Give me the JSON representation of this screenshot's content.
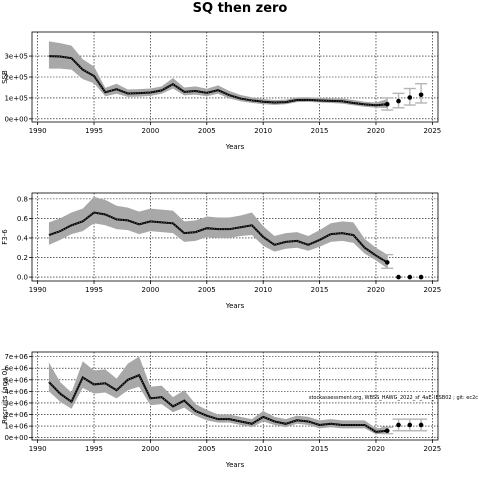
{
  "page": {
    "title": "SQ then zero"
  },
  "chart_data": [
    {
      "type": "line",
      "xlabel": "Years",
      "ylabel": "SSB",
      "xlim": [
        1989.5,
        2025.5
      ],
      "ylim": [
        -15000,
        415000
      ],
      "xticks": [
        1990,
        1995,
        2000,
        2005,
        2010,
        2015,
        2020,
        2025
      ],
      "yticks": [
        0,
        100000,
        200000,
        300000
      ],
      "yticklabels": [
        "0e+00",
        "1e+05",
        "2e+05",
        "3e+05"
      ],
      "grid": true,
      "years": [
        1991,
        1992,
        1993,
        1994,
        1995,
        1996,
        1997,
        1998,
        1999,
        2000,
        2001,
        2002,
        2003,
        2004,
        2005,
        2006,
        2007,
        2008,
        2009,
        2010,
        2011,
        2012,
        2013,
        2014,
        2015,
        2016,
        2017,
        2018,
        2019,
        2020,
        2021
      ],
      "estimate": [
        300000,
        298000,
        290000,
        235000,
        205000,
        127000,
        142000,
        121000,
        123000,
        126000,
        136000,
        166000,
        129000,
        133000,
        124000,
        137000,
        113000,
        97000,
        88000,
        82000,
        78000,
        80000,
        90000,
        91000,
        88000,
        86000,
        84000,
        76000,
        69000,
        65000,
        70000
      ],
      "lower": [
        240000,
        240000,
        235000,
        190000,
        170000,
        108000,
        120000,
        105000,
        106000,
        110000,
        120000,
        145000,
        112000,
        116000,
        108000,
        120000,
        97000,
        84000,
        76000,
        70000,
        67000,
        70000,
        80000,
        81000,
        78000,
        76000,
        73000,
        65000,
        58000,
        53000,
        52000
      ],
      "upper": [
        370000,
        362000,
        350000,
        285000,
        250000,
        148000,
        168000,
        140000,
        142000,
        145000,
        155000,
        195000,
        150000,
        155000,
        144000,
        160000,
        133000,
        114000,
        103000,
        95000,
        90000,
        92000,
        103000,
        103000,
        100000,
        98000,
        97000,
        90000,
        82000,
        78000,
        95000
      ],
      "projection": {
        "years": [
          2021,
          2022,
          2023,
          2024
        ],
        "values": [
          70000,
          85000,
          102000,
          115000
        ],
        "lower": [
          42000,
          53000,
          66000,
          76000
        ],
        "upper": [
          100000,
          122000,
          145000,
          168000
        ]
      },
      "annotation": ""
    },
    {
      "type": "line",
      "xlabel": "Years",
      "ylabel": "F3-6",
      "xlim": [
        1989.5,
        2025.5
      ],
      "ylim": [
        -0.04,
        0.86
      ],
      "xticks": [
        1990,
        1995,
        2000,
        2005,
        2010,
        2015,
        2020,
        2025
      ],
      "yticks": [
        0,
        0.2,
        0.4,
        0.6,
        0.8
      ],
      "yticklabels": [
        "0.0",
        "0.2",
        "0.4",
        "0.6",
        "0.8"
      ],
      "grid": true,
      "years": [
        1991,
        1992,
        1993,
        1994,
        1995,
        1996,
        1997,
        1998,
        1999,
        2000,
        2001,
        2002,
        2003,
        2004,
        2005,
        2006,
        2007,
        2008,
        2009,
        2010,
        2011,
        2012,
        2013,
        2014,
        2015,
        2016,
        2017,
        2018,
        2019,
        2020,
        2021
      ],
      "estimate": [
        0.43,
        0.47,
        0.53,
        0.57,
        0.66,
        0.64,
        0.59,
        0.58,
        0.54,
        0.57,
        0.56,
        0.55,
        0.45,
        0.46,
        0.5,
        0.49,
        0.49,
        0.51,
        0.53,
        0.41,
        0.33,
        0.36,
        0.37,
        0.33,
        0.38,
        0.44,
        0.45,
        0.43,
        0.3,
        0.22,
        0.15
      ],
      "lower": [
        0.33,
        0.38,
        0.44,
        0.47,
        0.55,
        0.53,
        0.49,
        0.48,
        0.44,
        0.47,
        0.46,
        0.45,
        0.36,
        0.37,
        0.41,
        0.4,
        0.4,
        0.42,
        0.43,
        0.32,
        0.26,
        0.29,
        0.3,
        0.27,
        0.31,
        0.36,
        0.37,
        0.35,
        0.24,
        0.17,
        0.09
      ],
      "upper": [
        0.56,
        0.6,
        0.66,
        0.7,
        0.82,
        0.79,
        0.73,
        0.71,
        0.67,
        0.7,
        0.69,
        0.68,
        0.57,
        0.58,
        0.62,
        0.61,
        0.61,
        0.63,
        0.66,
        0.52,
        0.42,
        0.45,
        0.46,
        0.42,
        0.48,
        0.55,
        0.57,
        0.56,
        0.39,
        0.3,
        0.23
      ],
      "projection": {
        "years": [
          2021,
          2022,
          2023,
          2024
        ],
        "values": [
          0.15,
          0.0,
          0.0,
          0.0
        ],
        "lower": [
          0.09,
          0.0,
          0.0,
          0.0
        ],
        "upper": [
          0.23,
          0.0,
          0.0,
          0.0
        ]
      },
      "annotation": ""
    },
    {
      "type": "line",
      "xlabel": "Years",
      "ylabel": "Recruits (age 0)",
      "xlim": [
        1989.5,
        2025.5
      ],
      "ylim": [
        -200000,
        7400000
      ],
      "xticks": [
        1990,
        1995,
        2000,
        2005,
        2010,
        2015,
        2020,
        2025
      ],
      "yticks": [
        0,
        1000000,
        2000000,
        3000000,
        4000000,
        5000000,
        6000000,
        7000000
      ],
      "yticklabels": [
        "0e+00",
        "1e+06",
        "2e+06",
        "3e+06",
        "4e+06",
        "5e+06",
        "6e+06",
        "7e+06"
      ],
      "grid": true,
      "years": [
        1991,
        1992,
        1993,
        1994,
        1995,
        1996,
        1997,
        1998,
        1999,
        2000,
        2001,
        2002,
        2003,
        2004,
        2005,
        2006,
        2007,
        2008,
        2009,
        2010,
        2011,
        2012,
        2013,
        2014,
        2015,
        2016,
        2017,
        2018,
        2019,
        2020,
        2021
      ],
      "estimate": [
        4800000,
        3800000,
        3100000,
        5200000,
        4600000,
        4700000,
        4100000,
        5000000,
        5400000,
        3400000,
        3500000,
        2700000,
        3200000,
        2300000,
        1900000,
        1600000,
        1600000,
        1400000,
        1200000,
        1800000,
        1400000,
        1200000,
        1500000,
        1400000,
        1100000,
        1200000,
        1100000,
        1100000,
        1100000,
        500000,
        600000
      ],
      "lower": [
        4000000,
        3100000,
        2500000,
        4300000,
        3800000,
        3900000,
        3400000,
        4100000,
        4400000,
        2800000,
        2900000,
        2200000,
        2600000,
        1900000,
        1500000,
        1300000,
        1300000,
        1100000,
        900000,
        1400000,
        1100000,
        900000,
        1200000,
        1100000,
        800000,
        900000,
        800000,
        800000,
        800000,
        300000,
        350000
      ],
      "upper": [
        6500000,
        4800000,
        3900000,
        6600000,
        5800000,
        5900000,
        5100000,
        6400000,
        7000000,
        4400000,
        4500000,
        3500000,
        4100000,
        2900000,
        2400000,
        2000000,
        2000000,
        1800000,
        1600000,
        2300000,
        1800000,
        1600000,
        1900000,
        1800000,
        1500000,
        1600000,
        1500000,
        1500000,
        1500000,
        800000,
        900000
      ],
      "projection": {
        "years": [
          2021,
          2022,
          2023,
          2024
        ],
        "values": [
          600000,
          1100000,
          1100000,
          1100000
        ],
        "lower": [
          350000,
          600000,
          600000,
          600000
        ],
        "upper": [
          900000,
          1600000,
          1600000,
          1600000
        ]
      },
      "annotation": "stockassessment.org, WBSS_HAWG_2022_sf_4aE_IESB02 ; git: ec2c"
    }
  ]
}
